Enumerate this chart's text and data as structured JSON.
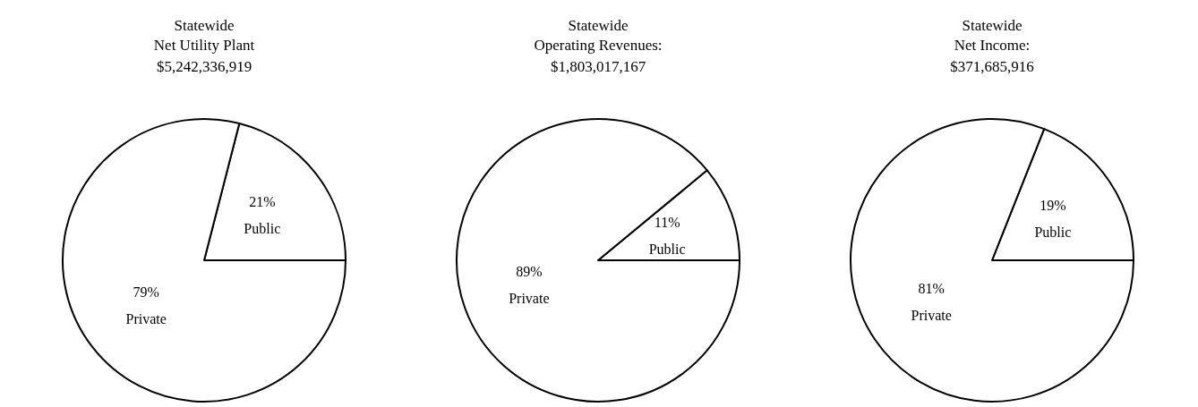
{
  "chart_data": [
    {
      "type": "pie",
      "title": "Statewide\nNet Utility Plant",
      "subtitle": "$5,242,336,919",
      "categories": [
        "Public",
        "Private"
      ],
      "values": [
        21,
        79
      ],
      "value_labels": [
        "21%",
        "79%"
      ],
      "colors": [
        "#ffffff",
        "#ffffff"
      ],
      "legend": false
    },
    {
      "type": "pie",
      "title": "Statewide\nOperating Revenues:",
      "subtitle": "$1,803,017,167",
      "categories": [
        "Public",
        "Private"
      ],
      "values": [
        11,
        89
      ],
      "value_labels": [
        "11%",
        "89%"
      ],
      "colors": [
        "#ffffff",
        "#ffffff"
      ],
      "legend": false
    },
    {
      "type": "pie",
      "title": "Statewide\nNet Income:",
      "subtitle": "$371,685,916",
      "categories": [
        "Public",
        "Private"
      ],
      "values": [
        19,
        81
      ],
      "value_labels": [
        "19%",
        "81%"
      ],
      "colors": [
        "#ffffff",
        "#ffffff"
      ],
      "legend": false
    }
  ]
}
